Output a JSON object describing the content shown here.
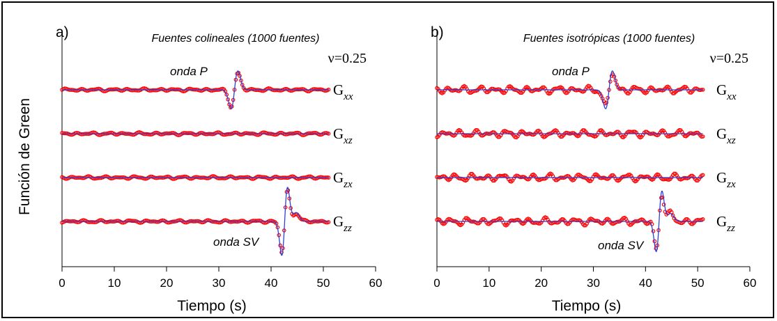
{
  "figure": {
    "ylabel": "Función de Green",
    "colors": {
      "model": "#2e3fd6",
      "data": "#ff0000"
    }
  },
  "chart_data": [
    {
      "type": "line",
      "panel_label": "a)",
      "title": "Fuentes colineales (1000 fuentes)",
      "nu_label": "ν=0.25",
      "xlabel": "Tiempo (s)",
      "xlim": [
        0,
        60
      ],
      "xticks": [
        "0",
        "10",
        "20",
        "30",
        "40",
        "50",
        "60"
      ],
      "annotations": {
        "p_wave": "onda P",
        "sv_wave": "onda SV"
      },
      "t_end": 51,
      "noise": 0.08,
      "traces": [
        {
          "label": "G",
          "sub": "xx",
          "wavelets": [
            {
              "t0": 33.0,
              "amp": 1.0,
              "kind": "p"
            }
          ]
        },
        {
          "label": "G",
          "sub": "xz",
          "wavelets": []
        },
        {
          "label": "G",
          "sub": "zx",
          "wavelets": []
        },
        {
          "label": "G",
          "sub": "zz",
          "wavelets": [
            {
              "t0": 42.6,
              "amp": 1.8,
              "kind": "sv"
            }
          ]
        }
      ]
    },
    {
      "type": "line",
      "panel_label": "b)",
      "title": "Fuentes isotrópicas (1000 fuentes)",
      "nu_label": "ν=0.25",
      "xlabel": "Tiempo (s)",
      "xlim": [
        0,
        60
      ],
      "xticks": [
        "0",
        "10",
        "20",
        "30",
        "40",
        "50",
        "60"
      ],
      "annotations": {
        "p_wave": "onda P",
        "sv_wave": "onda SV"
      },
      "t_end": 51,
      "noise": 0.22,
      "traces": [
        {
          "label": "G",
          "sub": "xx",
          "wavelets": [
            {
              "t0": 33.0,
              "amp": 1.0,
              "kind": "p"
            }
          ]
        },
        {
          "label": "G",
          "sub": "xz",
          "wavelets": []
        },
        {
          "label": "G",
          "sub": "zx",
          "wavelets": []
        },
        {
          "label": "G",
          "sub": "zz",
          "wavelets": [
            {
              "t0": 42.6,
              "amp": 1.6,
              "kind": "sv"
            }
          ]
        }
      ]
    }
  ]
}
